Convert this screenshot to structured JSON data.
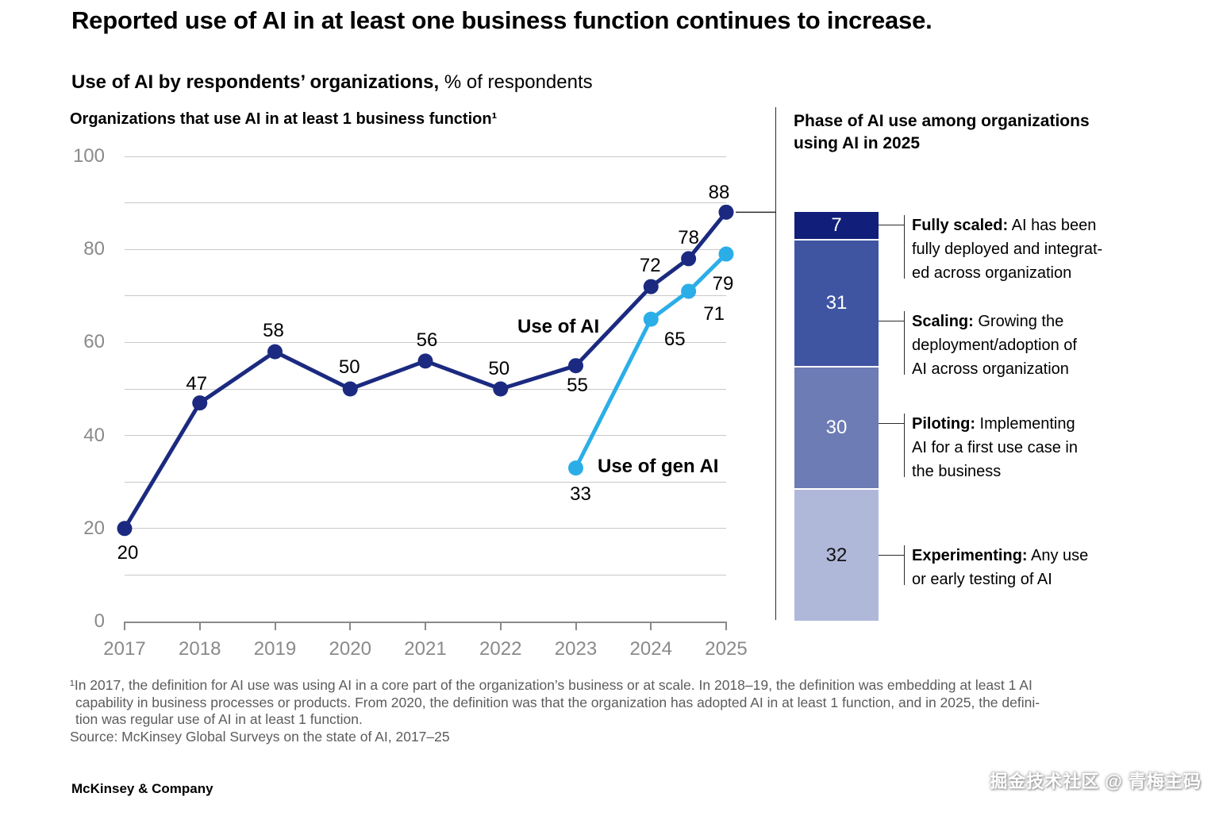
{
  "page": {
    "title": "Reported use of AI in at least one business function continues to increase.",
    "subtitle_bold": "Use of AI by respondents’ organizations,",
    "subtitle_rest": " % of respondents",
    "brand": "McKinsey & Company",
    "watermark": "掘金技术社区 @ 青梅主码"
  },
  "colors": {
    "use_of_ai_line": "#1b2a80",
    "use_of_gen_ai_line": "#2baee8",
    "gridline": "#c9c9c9",
    "axis": "#8a8a8a"
  },
  "chart_data": [
    {
      "type": "line",
      "title": "Organizations that use AI in at least 1 business function¹",
      "xlabel": "",
      "ylabel": "",
      "ylim": [
        0,
        100
      ],
      "grid": "horizontal, every 10 units",
      "x_tick_labels": [
        "2017",
        "2018",
        "2019",
        "2020",
        "2021",
        "2022",
        "2023",
        "2024",
        "2025"
      ],
      "y_axis_labels": [
        0,
        20,
        40,
        60,
        80,
        100
      ],
      "legend_position": "inline labels next to lines",
      "series": [
        {
          "name": "Use of AI",
          "color": "#1b2a80",
          "x": [
            2017,
            2018,
            2019,
            2020,
            2021,
            2022,
            2023,
            2024,
            2024.5,
            2025
          ],
          "values": [
            20,
            47,
            58,
            50,
            56,
            50,
            55,
            72,
            78,
            88
          ],
          "label_offsets": [
            [
              4,
              31
            ],
            [
              -4,
              -24
            ],
            [
              -2,
              -26
            ],
            [
              -1,
              -27
            ],
            [
              2,
              -26
            ],
            [
              -2,
              -25
            ],
            [
              2,
              25
            ],
            [
              -1,
              -26
            ],
            [
              0,
              -26
            ],
            [
              -9,
              -24
            ]
          ]
        },
        {
          "name": "Use of gen AI",
          "color": "#2baee8",
          "x": [
            2023,
            2024,
            2024.5,
            2025
          ],
          "values": [
            33,
            65,
            71,
            79
          ],
          "label_offsets": [
            [
              6,
              33
            ],
            [
              30,
              26
            ],
            [
              32,
              29
            ],
            [
              -4,
              38
            ]
          ]
        }
      ]
    },
    {
      "type": "stacked-bar",
      "title": "Phase of AI use among organizations using AI in 2025",
      "total": 100,
      "bar_alignment_note": "bar top aligns with the 88% point of the line chart",
      "segments": [
        {
          "value": 7,
          "color": "#111f7a",
          "text_color": "#ffffff",
          "term": "Fully scaled:",
          "desc_lines": [
            "AI has been",
            "fully deployed and integrat-",
            "ed across organization"
          ]
        },
        {
          "value": 31,
          "color": "#3f55a2",
          "text_color": "#ffffff",
          "term": "Scaling:",
          "desc_lines": [
            "Growing the",
            "deployment/adoption of",
            "AI across organization"
          ]
        },
        {
          "value": 30,
          "color": "#6d7cb4",
          "text_color": "#ffffff",
          "term": "Piloting:",
          "desc_lines": [
            "Implementing",
            "AI for a first use case in",
            "the business"
          ]
        },
        {
          "value": 32,
          "color": "#b0b8da",
          "text_color": "#111111",
          "term": "Experimenting:",
          "desc_lines": [
            "Any use",
            "or early testing of AI"
          ]
        }
      ]
    }
  ],
  "footnote": {
    "lines": [
      "¹In 2017, the definition for AI use was using AI in a core part of the organization’s business or at scale. In 2018–19, the definition was embedding at least 1 AI",
      "capability in business processes or products. From 2020, the definition was that the organization has adopted AI in at least 1 function, and in 2025, the defini-",
      "tion was regular use of AI in at least 1 function.",
      "Source: McKinsey Global Surveys on the state of AI, 2017–25"
    ]
  }
}
